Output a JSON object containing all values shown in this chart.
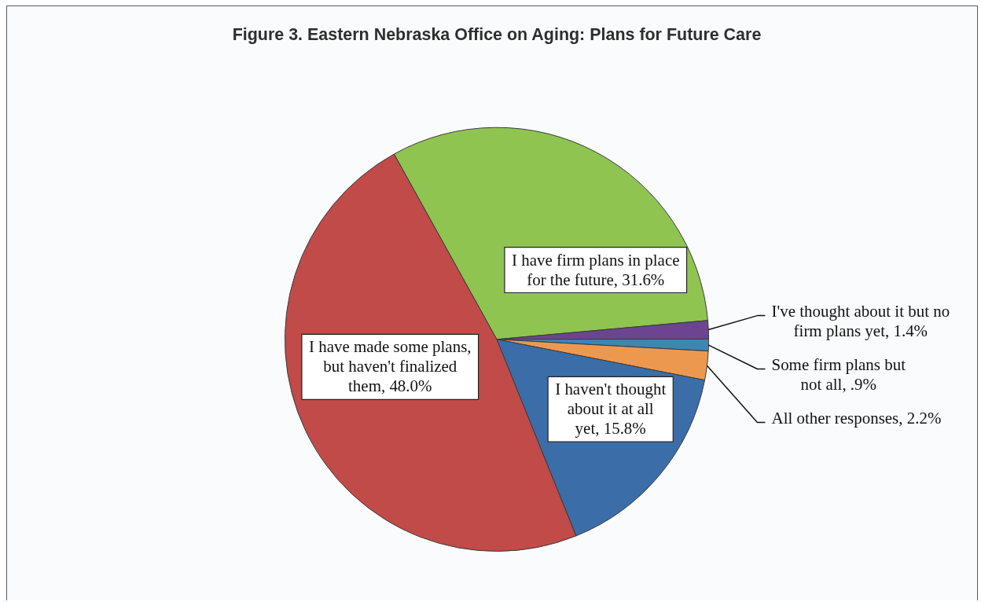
{
  "chart_data": {
    "type": "pie",
    "title": "Figure 3. Eastern Nebraska Office on Aging: Plans for Future Care",
    "categories": [
      "I have firm plans in place for the future",
      "I've thought about it but no firm plans yet",
      "Some firm plans but not all",
      "All other responses",
      "I haven't thought about it at all yet",
      "I have made some plans, but haven't finalized them"
    ],
    "values": [
      31.6,
      1.4,
      0.9,
      2.2,
      15.8,
      48.0
    ],
    "colors": [
      "#8fc451",
      "#6b4590",
      "#3d86b4",
      "#ec994f",
      "#3b6ea8",
      "#c04b48"
    ],
    "value_labels": [
      "31.6%",
      "1.4%",
      ".9%",
      "2.2%",
      "15.8%",
      "48.0%"
    ]
  }
}
